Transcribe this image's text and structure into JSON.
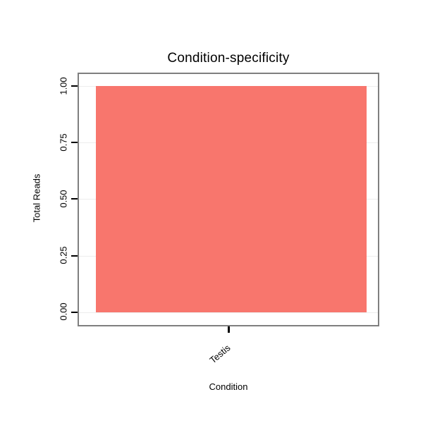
{
  "chart_data": {
    "type": "bar",
    "title": "Condition-specificity",
    "xlabel": "Condition",
    "ylabel": "Total Reads",
    "categories": [
      "Testis"
    ],
    "values": [
      1.0
    ],
    "ylim": [
      0,
      1
    ],
    "ytick_labels": [
      "0.00",
      "0.25",
      "0.50",
      "0.75",
      "1.00"
    ],
    "bar_color": "#F8766D",
    "grid": true,
    "legend_position": "none"
  }
}
